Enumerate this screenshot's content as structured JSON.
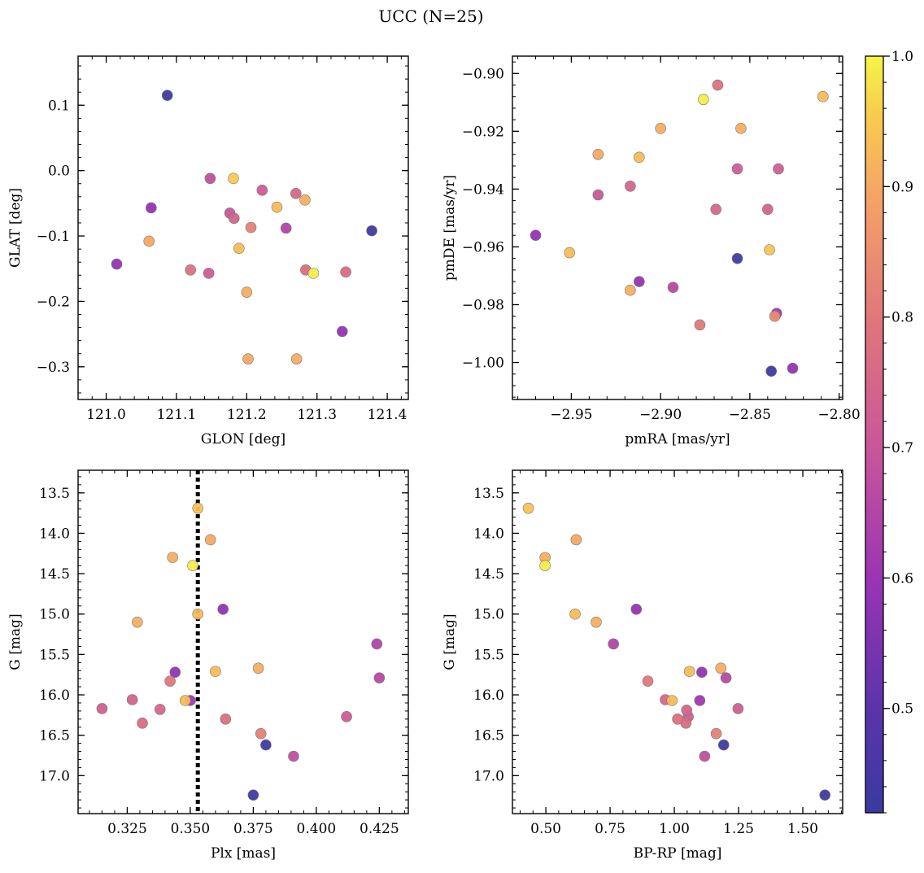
{
  "figure": {
    "title": "UCC (N=25)"
  },
  "colorbar": {
    "range": [
      0.42,
      1.0
    ],
    "ticks": [
      "0.5",
      "0.6",
      "0.7",
      "0.8",
      "0.9",
      "1.0"
    ],
    "tick_values": [
      0.5,
      0.6,
      0.7,
      0.8,
      0.9,
      1.0
    ],
    "colormap": "plasma"
  },
  "chart_data": [
    {
      "type": "scatter",
      "title": "",
      "xlabel": "GLON [deg]",
      "ylabel": "GLAT [deg]",
      "xlim": [
        120.96,
        121.43
      ],
      "ylim": [
        -0.35,
        0.175
      ],
      "xticks": [
        121.0,
        121.1,
        121.2,
        121.3,
        121.4
      ],
      "xticklabels": [
        "121.0",
        "121.1",
        "121.2",
        "121.3",
        "121.4"
      ],
      "yticks": [
        0.1,
        0.0,
        -0.1,
        -0.2,
        -0.3
      ],
      "yticklabels": [
        "0.1",
        "0.0",
        "−0.1",
        "−0.2",
        "−0.3"
      ],
      "xminor": 0.02,
      "yminor": 0.02,
      "points": [
        {
          "x": 121.087,
          "y": 0.115,
          "c": 0.44
        },
        {
          "x": 121.378,
          "y": -0.092,
          "c": 0.44
        },
        {
          "x": 121.064,
          "y": -0.057,
          "c": 0.59
        },
        {
          "x": 121.015,
          "y": -0.143,
          "c": 0.59
        },
        {
          "x": 121.336,
          "y": -0.246,
          "c": 0.59
        },
        {
          "x": 121.256,
          "y": -0.088,
          "c": 0.65
        },
        {
          "x": 121.148,
          "y": -0.012,
          "c": 0.68
        },
        {
          "x": 121.176,
          "y": -0.065,
          "c": 0.7
        },
        {
          "x": 121.222,
          "y": -0.03,
          "c": 0.72
        },
        {
          "x": 121.182,
          "y": -0.073,
          "c": 0.74
        },
        {
          "x": 121.146,
          "y": -0.157,
          "c": 0.72
        },
        {
          "x": 121.27,
          "y": -0.035,
          "c": 0.75
        },
        {
          "x": 121.284,
          "y": -0.152,
          "c": 0.77
        },
        {
          "x": 121.12,
          "y": -0.152,
          "c": 0.78
        },
        {
          "x": 121.341,
          "y": -0.155,
          "c": 0.77
        },
        {
          "x": 121.206,
          "y": -0.087,
          "c": 0.82
        },
        {
          "x": 121.061,
          "y": -0.108,
          "c": 0.9
        },
        {
          "x": 121.2,
          "y": -0.186,
          "c": 0.91
        },
        {
          "x": 121.202,
          "y": -0.288,
          "c": 0.9
        },
        {
          "x": 121.271,
          "y": -0.288,
          "c": 0.91
        },
        {
          "x": 121.283,
          "y": -0.045,
          "c": 0.91
        },
        {
          "x": 121.243,
          "y": -0.056,
          "c": 0.93
        },
        {
          "x": 121.189,
          "y": -0.119,
          "c": 0.93
        },
        {
          "x": 121.181,
          "y": -0.012,
          "c": 0.95
        },
        {
          "x": 121.295,
          "y": -0.157,
          "c": 0.99
        }
      ]
    },
    {
      "type": "scatter",
      "title": "",
      "xlabel": "pmRA [mas/yr]",
      "ylabel": "pmDE [mas/yr]",
      "xlim": [
        -2.983,
        -2.798
      ],
      "ylim": [
        -1.0128,
        -0.894
      ],
      "xticks": [
        -2.95,
        -2.9,
        -2.85,
        -2.8
      ],
      "xticklabels": [
        "−2.95",
        "−2.90",
        "−2.85",
        "−2.80"
      ],
      "yticks": [
        -0.9,
        -0.92,
        -0.94,
        -0.96,
        -0.98,
        -1.0
      ],
      "yticklabels": [
        "−0.90",
        "−0.92",
        "−0.94",
        "−0.96",
        "−0.98",
        "−1.00"
      ],
      "xminor": 0.01,
      "yminor": 0.004,
      "points": [
        {
          "x": -2.838,
          "y": -1.003,
          "c": 0.44
        },
        {
          "x": -2.857,
          "y": -0.964,
          "c": 0.44
        },
        {
          "x": -2.97,
          "y": -0.956,
          "c": 0.59
        },
        {
          "x": -2.912,
          "y": -0.972,
          "c": 0.59
        },
        {
          "x": -2.826,
          "y": -1.002,
          "c": 0.59
        },
        {
          "x": -2.835,
          "y": -0.983,
          "c": 0.62
        },
        {
          "x": -2.893,
          "y": -0.974,
          "c": 0.66
        },
        {
          "x": -2.935,
          "y": -0.942,
          "c": 0.7
        },
        {
          "x": -2.857,
          "y": -0.933,
          "c": 0.72
        },
        {
          "x": -2.834,
          "y": -0.933,
          "c": 0.73
        },
        {
          "x": -2.917,
          "y": -0.939,
          "c": 0.75
        },
        {
          "x": -2.869,
          "y": -0.947,
          "c": 0.75
        },
        {
          "x": -2.84,
          "y": -0.947,
          "c": 0.74
        },
        {
          "x": -2.868,
          "y": -0.904,
          "c": 0.78
        },
        {
          "x": -2.878,
          "y": -0.987,
          "c": 0.8
        },
        {
          "x": -2.836,
          "y": -0.984,
          "c": 0.84
        },
        {
          "x": -2.935,
          "y": -0.928,
          "c": 0.9
        },
        {
          "x": -2.9,
          "y": -0.919,
          "c": 0.91
        },
        {
          "x": -2.855,
          "y": -0.919,
          "c": 0.91
        },
        {
          "x": -2.917,
          "y": -0.975,
          "c": 0.91
        },
        {
          "x": -2.951,
          "y": -0.962,
          "c": 0.93
        },
        {
          "x": -2.912,
          "y": -0.929,
          "c": 0.93
        },
        {
          "x": -2.809,
          "y": -0.908,
          "c": 0.93
        },
        {
          "x": -2.839,
          "y": -0.961,
          "c": 0.94
        },
        {
          "x": -2.876,
          "y": -0.909,
          "c": 0.99
        }
      ]
    },
    {
      "type": "scatter",
      "title": "",
      "xlabel": "Plx [mas]",
      "ylabel": "G [mag]",
      "xlim": [
        0.3055,
        0.4365
      ],
      "ylim": [
        17.47,
        13.22
      ],
      "xticks": [
        0.325,
        0.35,
        0.375,
        0.4,
        0.425
      ],
      "xticklabels": [
        "0.325",
        "0.350",
        "0.375",
        "0.400",
        "0.425"
      ],
      "yticks": [
        13.5,
        14.0,
        14.5,
        15.0,
        15.5,
        16.0,
        16.5,
        17.0
      ],
      "yticklabels": [
        "13.5",
        "14.0",
        "14.5",
        "15.0",
        "15.5",
        "16.0",
        "16.5",
        "17.0"
      ],
      "xminor": 0.005,
      "yminor": 0.1,
      "vline": {
        "x": 0.353,
        "style": "dotted"
      },
      "points": [
        {
          "x": 0.38,
          "y": 16.62,
          "c": 0.44
        },
        {
          "x": 0.375,
          "y": 17.24,
          "c": 0.44
        },
        {
          "x": 0.363,
          "y": 14.94,
          "c": 0.59
        },
        {
          "x": 0.344,
          "y": 15.72,
          "c": 0.59
        },
        {
          "x": 0.35,
          "y": 16.07,
          "c": 0.61
        },
        {
          "x": 0.424,
          "y": 15.37,
          "c": 0.65
        },
        {
          "x": 0.425,
          "y": 15.79,
          "c": 0.66
        },
        {
          "x": 0.391,
          "y": 16.76,
          "c": 0.68
        },
        {
          "x": 0.412,
          "y": 16.27,
          "c": 0.72
        },
        {
          "x": 0.315,
          "y": 16.17,
          "c": 0.73
        },
        {
          "x": 0.327,
          "y": 16.06,
          "c": 0.74
        },
        {
          "x": 0.338,
          "y": 16.18,
          "c": 0.75
        },
        {
          "x": 0.331,
          "y": 16.35,
          "c": 0.77
        },
        {
          "x": 0.364,
          "y": 16.3,
          "c": 0.78
        },
        {
          "x": 0.342,
          "y": 15.83,
          "c": 0.8
        },
        {
          "x": 0.378,
          "y": 16.48,
          "c": 0.82
        },
        {
          "x": 0.358,
          "y": 14.08,
          "c": 0.9
        },
        {
          "x": 0.343,
          "y": 14.3,
          "c": 0.91
        },
        {
          "x": 0.329,
          "y": 15.1,
          "c": 0.91
        },
        {
          "x": 0.377,
          "y": 15.67,
          "c": 0.91
        },
        {
          "x": 0.36,
          "y": 15.71,
          "c": 0.93
        },
        {
          "x": 0.348,
          "y": 16.07,
          "c": 0.93
        },
        {
          "x": 0.353,
          "y": 13.69,
          "c": 0.94
        },
        {
          "x": 0.353,
          "y": 15.0,
          "c": 0.93
        },
        {
          "x": 0.351,
          "y": 14.4,
          "c": 0.99
        }
      ]
    },
    {
      "type": "scatter",
      "title": "",
      "xlabel": "BP-RP [mag]",
      "ylabel": "G [mag]",
      "xlim": [
        0.37,
        1.655
      ],
      "ylim": [
        17.47,
        13.22
      ],
      "xticks": [
        0.5,
        0.75,
        1.0,
        1.25,
        1.5
      ],
      "xticklabels": [
        "0.50",
        "0.75",
        "1.00",
        "1.25",
        "1.50"
      ],
      "yticks": [
        13.5,
        14.0,
        14.5,
        15.0,
        15.5,
        16.0,
        16.5,
        17.0
      ],
      "yticklabels": [
        "13.5",
        "14.0",
        "14.5",
        "15.0",
        "15.5",
        "16.0",
        "16.5",
        "17.0"
      ],
      "xminor": 0.05,
      "yminor": 0.1,
      "points": [
        {
          "x": 1.192,
          "y": 16.62,
          "c": 0.44
        },
        {
          "x": 1.586,
          "y": 17.24,
          "c": 0.44
        },
        {
          "x": 0.852,
          "y": 14.94,
          "c": 0.59
        },
        {
          "x": 1.107,
          "y": 15.72,
          "c": 0.59
        },
        {
          "x": 1.099,
          "y": 16.07,
          "c": 0.61
        },
        {
          "x": 0.763,
          "y": 15.37,
          "c": 0.65
        },
        {
          "x": 1.201,
          "y": 15.79,
          "c": 0.66
        },
        {
          "x": 1.118,
          "y": 16.76,
          "c": 0.68
        },
        {
          "x": 1.054,
          "y": 16.27,
          "c": 0.72
        },
        {
          "x": 1.248,
          "y": 16.17,
          "c": 0.73
        },
        {
          "x": 1.048,
          "y": 16.19,
          "c": 0.74
        },
        {
          "x": 0.965,
          "y": 16.06,
          "c": 0.75
        },
        {
          "x": 1.045,
          "y": 16.35,
          "c": 0.77
        },
        {
          "x": 1.013,
          "y": 16.3,
          "c": 0.78
        },
        {
          "x": 0.897,
          "y": 15.83,
          "c": 0.8
        },
        {
          "x": 1.163,
          "y": 16.48,
          "c": 0.82
        },
        {
          "x": 0.618,
          "y": 14.08,
          "c": 0.9
        },
        {
          "x": 0.497,
          "y": 14.3,
          "c": 0.91
        },
        {
          "x": 0.696,
          "y": 15.1,
          "c": 0.91
        },
        {
          "x": 1.181,
          "y": 15.67,
          "c": 0.91
        },
        {
          "x": 1.059,
          "y": 15.71,
          "c": 0.93
        },
        {
          "x": 0.991,
          "y": 16.07,
          "c": 0.93
        },
        {
          "x": 0.432,
          "y": 13.69,
          "c": 0.94
        },
        {
          "x": 0.614,
          "y": 15.0,
          "c": 0.93
        },
        {
          "x": 0.497,
          "y": 14.4,
          "c": 0.99
        }
      ]
    }
  ]
}
